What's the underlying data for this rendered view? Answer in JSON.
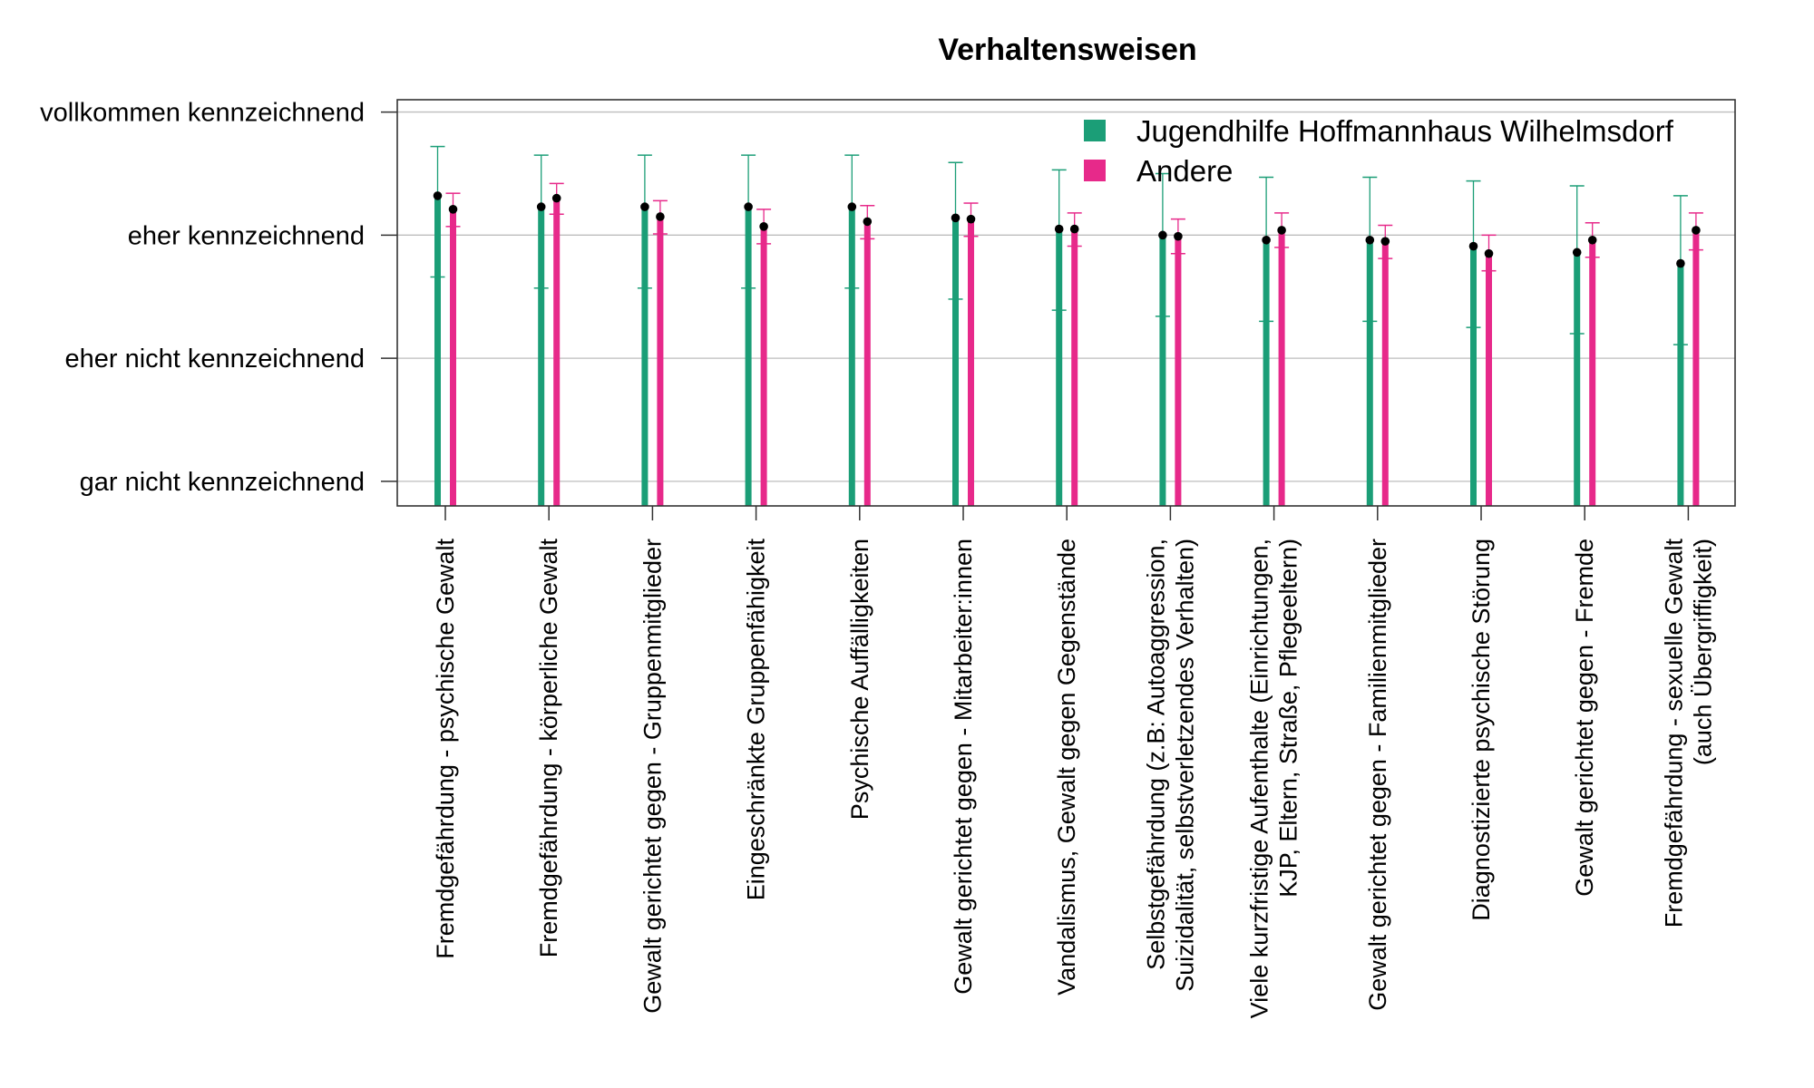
{
  "chart_data": {
    "type": "bar",
    "title": "Verhaltensweisen",
    "xlabel": "",
    "ylabel": "",
    "ylim": [
      0.8,
      4.1
    ],
    "y_ticks": [
      {
        "value": 1,
        "label": "gar nicht kennzeichnend"
      },
      {
        "value": 2,
        "label": "eher nicht kennzeichnend"
      },
      {
        "value": 3,
        "label": "eher kennzeichnend"
      },
      {
        "value": 4,
        "label": "vollkommen kennzeichnend"
      }
    ],
    "grid": true,
    "legend_position": "top-right",
    "categories": [
      [
        "Fremdgefährdung - psychische Gewalt"
      ],
      [
        "Fremdgefährdung - körperliche Gewalt"
      ],
      [
        "Gewalt gerichtet gegen - Gruppenmitglieder"
      ],
      [
        "Eingeschränkte Gruppenfähigkeit"
      ],
      [
        "Psychische Auffälligkeiten"
      ],
      [
        "Gewalt gerichtet gegen - Mitarbeiter:innen"
      ],
      [
        "Vandalismus, Gewalt gegen Gegenstände"
      ],
      [
        "Selbstgefährdung (z.B: Autoaggression,",
        "Suizidalität, selbstverletzendes Verhalten)"
      ],
      [
        "Viele kurzfristige Aufenthalte (Einrichtungen,",
        "KJP, Eltern, Straße, Pflegeeltern)"
      ],
      [
        "Gewalt gerichtet gegen - Familienmitglieder"
      ],
      [
        "Diagnostizierte psychische Störung"
      ],
      [
        "Gewalt gerichtet gegen - Fremde"
      ],
      [
        "Fremdgefährdung - sexuelle Gewalt",
        "(auch Übergriffigkeit)"
      ]
    ],
    "series": [
      {
        "name": "Jugendhilfe Hoffmannhaus Wilhelmsdorf",
        "color": "#1b9e77",
        "values": [
          3.32,
          3.23,
          3.23,
          3.23,
          3.23,
          3.14,
          3.05,
          3.0,
          2.96,
          2.96,
          2.91,
          2.86,
          2.77
        ],
        "ci_lower": [
          2.66,
          2.57,
          2.57,
          2.57,
          2.57,
          2.48,
          2.39,
          2.34,
          2.3,
          2.3,
          2.25,
          2.2,
          2.11
        ],
        "ci_upper": [
          3.72,
          3.65,
          3.65,
          3.65,
          3.65,
          3.59,
          3.53,
          3.5,
          3.47,
          3.47,
          3.44,
          3.4,
          3.32
        ]
      },
      {
        "name": "Andere",
        "color": "#e7298a",
        "values": [
          3.21,
          3.3,
          3.15,
          3.07,
          3.11,
          3.13,
          3.05,
          2.99,
          3.04,
          2.95,
          2.85,
          2.96,
          3.04
        ],
        "ci_lower": [
          3.07,
          3.17,
          3.01,
          2.93,
          2.97,
          2.99,
          2.91,
          2.85,
          2.9,
          2.81,
          2.71,
          2.82,
          2.88
        ],
        "ci_upper": [
          3.34,
          3.42,
          3.28,
          3.21,
          3.24,
          3.26,
          3.18,
          3.13,
          3.18,
          3.08,
          3.0,
          3.1,
          3.18
        ]
      }
    ]
  }
}
